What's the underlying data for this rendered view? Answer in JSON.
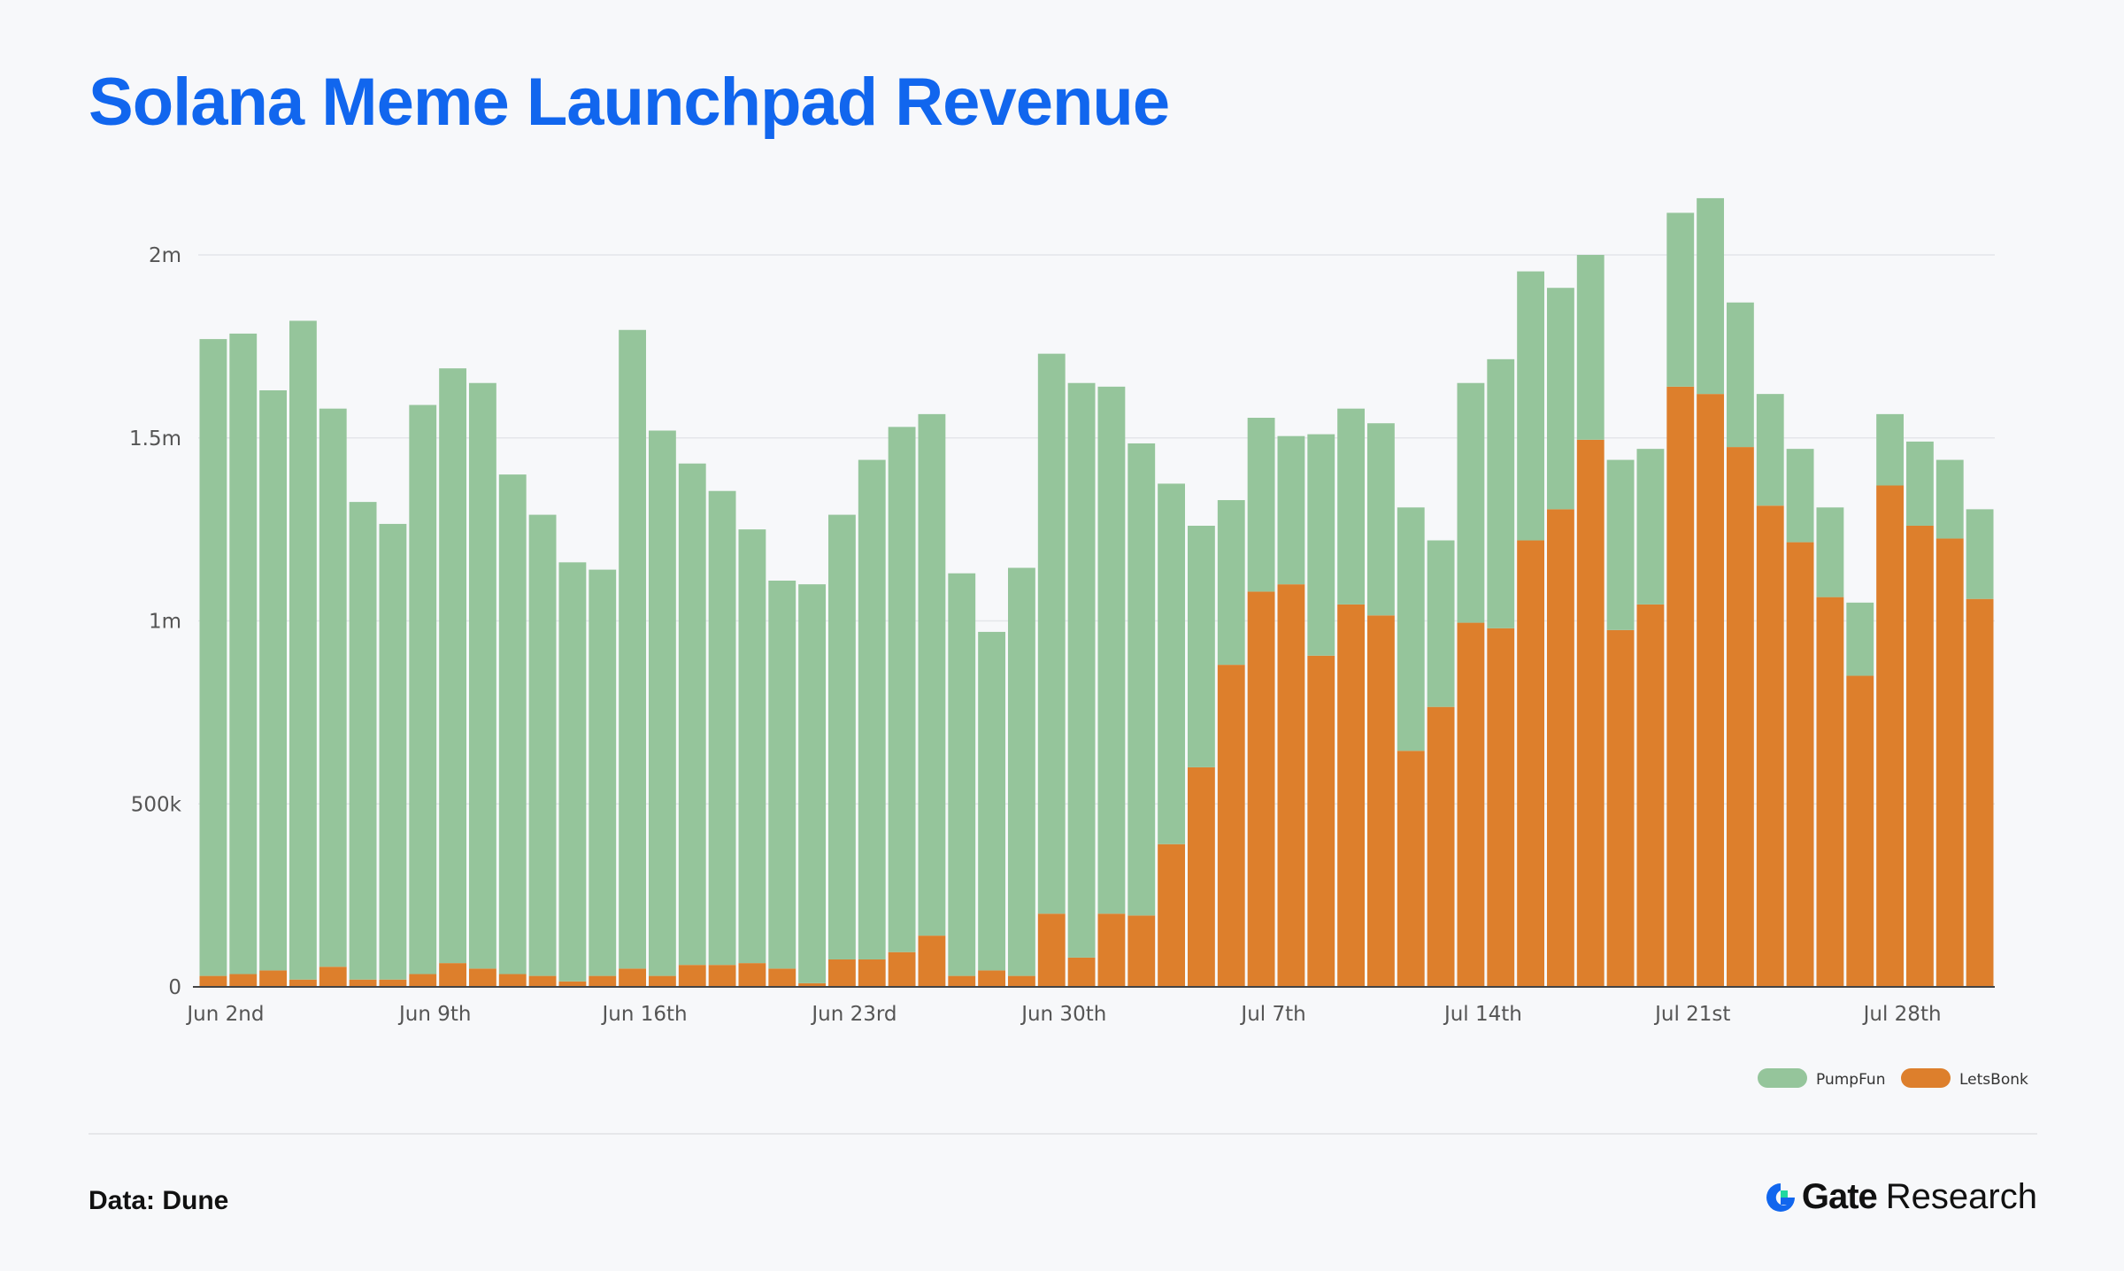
{
  "title": "Solana Meme Launchpad Revenue",
  "source": "Data: Dune",
  "brand": {
    "name": "Gate",
    "sub": "Research",
    "icon": "gate-logo-icon"
  },
  "colors": {
    "pumpfun": "#95c59b",
    "letsbonk": "#dd7f2c",
    "title": "#1166ee"
  },
  "chart_data": {
    "type": "bar",
    "stacked": true,
    "categories": [
      "Jun 2",
      "Jun 3",
      "Jun 4",
      "Jun 5",
      "Jun 6",
      "Jun 7",
      "Jun 8",
      "Jun 9",
      "Jun 10",
      "Jun 11",
      "Jun 12",
      "Jun 13",
      "Jun 14",
      "Jun 15",
      "Jun 16",
      "Jun 17",
      "Jun 18",
      "Jun 19",
      "Jun 20",
      "Jun 21",
      "Jun 22",
      "Jun 23",
      "Jun 24",
      "Jun 25",
      "Jun 26",
      "Jun 27",
      "Jun 28",
      "Jun 29",
      "Jun 30",
      "Jul 1",
      "Jul 2",
      "Jul 3",
      "Jul 4",
      "Jul 5",
      "Jul 6",
      "Jul 7",
      "Jul 8",
      "Jul 9",
      "Jul 10",
      "Jul 11",
      "Jul 12",
      "Jul 13",
      "Jul 14",
      "Jul 15",
      "Jul 16",
      "Jul 17",
      "Jul 18",
      "Jul 19",
      "Jul 20",
      "Jul 21",
      "Jul 22",
      "Jul 23",
      "Jul 24",
      "Jul 25",
      "Jul 26",
      "Jul 27",
      "Jul 28",
      "Jul 29",
      "Jul 30",
      "Jul 31"
    ],
    "x_tick_labels": [
      {
        "index": 0,
        "label": "Jun 2nd"
      },
      {
        "index": 7,
        "label": "Jun 9th"
      },
      {
        "index": 14,
        "label": "Jun 16th"
      },
      {
        "index": 21,
        "label": "Jun 23rd"
      },
      {
        "index": 28,
        "label": "Jun 30th"
      },
      {
        "index": 35,
        "label": "Jul 7th"
      },
      {
        "index": 42,
        "label": "Jul 14th"
      },
      {
        "index": 49,
        "label": "Jul 21st"
      },
      {
        "index": 56,
        "label": "Jul 28th"
      }
    ],
    "y_ticks": [
      {
        "value": 0,
        "label": "0"
      },
      {
        "value": 500000,
        "label": "500k"
      },
      {
        "value": 1000000,
        "label": "1m"
      },
      {
        "value": 1500000,
        "label": "1.5m"
      },
      {
        "value": 2000000,
        "label": "2m"
      }
    ],
    "ylim": [
      0,
      2200000
    ],
    "grid": true,
    "legend_position": "bottom-right",
    "series": [
      {
        "name": "LetsBonk",
        "color": "#dd7f2c",
        "values": [
          30000,
          35000,
          45000,
          20000,
          55000,
          20000,
          20000,
          35000,
          65000,
          50000,
          35000,
          30000,
          15000,
          30000,
          50000,
          30000,
          60000,
          60000,
          65000,
          50000,
          10000,
          75000,
          75000,
          95000,
          140000,
          30000,
          45000,
          30000,
          200000,
          80000,
          200000,
          195000,
          390000,
          600000,
          880000,
          1080000,
          1100000,
          905000,
          1045000,
          1015000,
          645000,
          765000,
          995000,
          980000,
          1220000,
          1305000,
          1495000,
          975000,
          1045000,
          1640000,
          1620000,
          1475000,
          1315000,
          1215000,
          1065000,
          850000,
          1370000,
          1260000,
          1225000,
          1060000
        ]
      },
      {
        "name": "PumpFun",
        "color": "#95c59b",
        "values": [
          1740000,
          1750000,
          1585000,
          1800000,
          1525000,
          1305000,
          1245000,
          1555000,
          1625000,
          1600000,
          1365000,
          1260000,
          1145000,
          1110000,
          1745000,
          1490000,
          1370000,
          1295000,
          1185000,
          1060000,
          1090000,
          1215000,
          1365000,
          1435000,
          1425000,
          1100000,
          925000,
          1115000,
          1530000,
          1570000,
          1440000,
          1290000,
          985000,
          660000,
          450000,
          475000,
          405000,
          605000,
          535000,
          525000,
          665000,
          455000,
          655000,
          735000,
          735000,
          605000,
          505000,
          465000,
          425000,
          475000,
          535000,
          395000,
          305000,
          255000,
          245000,
          200000,
          195000,
          230000,
          215000,
          245000
        ]
      }
    ]
  }
}
